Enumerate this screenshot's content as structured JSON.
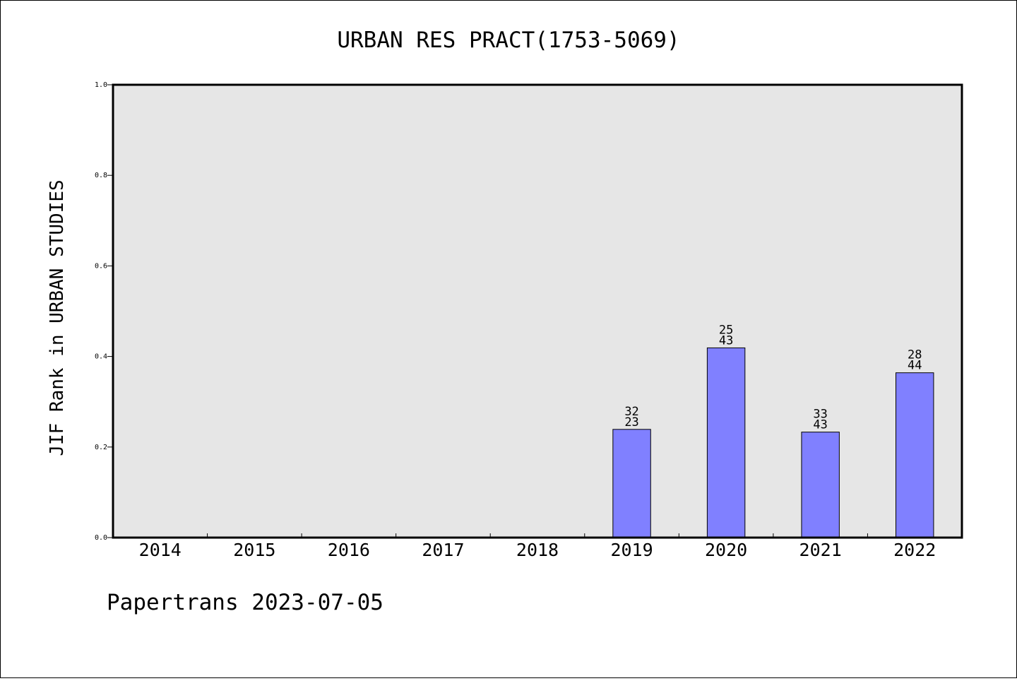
{
  "chart_data": {
    "type": "bar",
    "title": "URBAN RES PRACT(1753-5069)",
    "xlabel": "",
    "ylabel": "JIF Rank in URBAN STUDIES",
    "ylim": [
      0,
      1.0
    ],
    "yticks": [
      "0.0",
      "0.2",
      "0.4",
      "0.6",
      "0.8",
      "1.0"
    ],
    "categories": [
      "2014",
      "2015",
      "2016",
      "2017",
      "2018",
      "2019",
      "2020",
      "2021",
      "2022"
    ],
    "values": [
      null,
      null,
      null,
      null,
      null,
      0.239,
      0.419,
      0.233,
      0.364
    ],
    "labels_top": [
      "",
      "",
      "",
      "",
      "",
      "32",
      "25",
      "33",
      "28"
    ],
    "labels_bottom": [
      "",
      "",
      "",
      "",
      "",
      "23",
      "43",
      "43",
      "44"
    ],
    "grid": false,
    "bar_color": "#8080ff",
    "plot_bg": "#e6e6e6"
  },
  "footer": "Papertrans 2023-07-05"
}
